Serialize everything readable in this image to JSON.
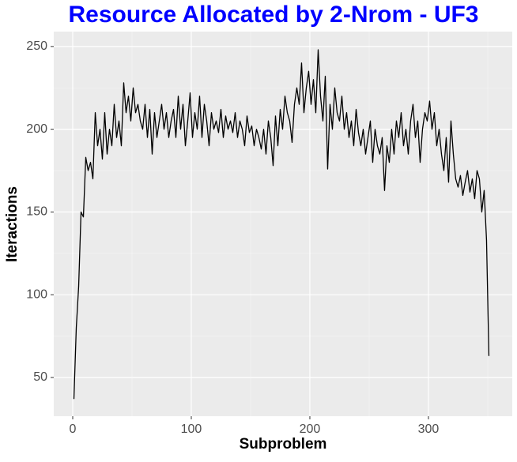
{
  "chart_data": {
    "type": "line",
    "title": "Resource Allocated by 2-Nrom - UF3",
    "x_label": "Subproblem",
    "y_label": "Iteractions",
    "xlim": [
      -16,
      370.7
    ],
    "ylim": [
      26.6,
      259
    ],
    "xticks": [
      0,
      100,
      200,
      300
    ],
    "yticks": [
      50,
      100,
      150,
      200,
      250
    ],
    "grid": true,
    "series": [
      {
        "color": "#000000",
        "x": [
          1,
          3,
          5,
          7,
          9,
          11,
          13,
          15,
          17,
          19,
          21,
          23,
          25,
          27,
          29,
          31,
          33,
          35,
          37,
          39,
          41,
          43,
          45,
          47,
          49,
          51,
          53,
          55,
          57,
          59,
          61,
          63,
          65,
          67,
          69,
          71,
          73,
          75,
          77,
          79,
          81,
          83,
          85,
          87,
          89,
          91,
          93,
          95,
          97,
          99,
          101,
          103,
          105,
          107,
          109,
          111,
          113,
          115,
          117,
          119,
          121,
          123,
          125,
          127,
          129,
          131,
          133,
          135,
          137,
          139,
          141,
          143,
          145,
          147,
          149,
          151,
          153,
          155,
          157,
          159,
          161,
          163,
          165,
          167,
          169,
          171,
          173,
          175,
          177,
          179,
          181,
          183,
          185,
          187,
          189,
          191,
          193,
          195,
          197,
          199,
          201,
          203,
          205,
          207,
          209,
          211,
          213,
          215,
          217,
          219,
          221,
          223,
          225,
          227,
          229,
          231,
          233,
          235,
          237,
          239,
          241,
          243,
          245,
          247,
          249,
          251,
          253,
          255,
          257,
          259,
          261,
          263,
          265,
          267,
          269,
          271,
          273,
          275,
          277,
          279,
          281,
          283,
          285,
          287,
          289,
          291,
          293,
          295,
          297,
          299,
          301,
          303,
          305,
          307,
          309,
          311,
          313,
          315,
          317,
          319,
          321,
          323,
          325,
          327,
          329,
          331,
          333,
          335,
          337,
          339,
          341,
          343,
          345,
          347,
          349,
          351
        ],
        "values": [
          37,
          80,
          105,
          150,
          147,
          183,
          175,
          180,
          170,
          210,
          190,
          200,
          182,
          210,
          185,
          200,
          190,
          215,
          195,
          205,
          190,
          228,
          210,
          220,
          205,
          225,
          210,
          215,
          205,
          200,
          215,
          195,
          212,
          185,
          210,
          195,
          205,
          215,
          200,
          210,
          195,
          205,
          212,
          195,
          220,
          200,
          215,
          190,
          205,
          222,
          195,
          210,
          200,
          220,
          195,
          215,
          205,
          190,
          210,
          200,
          205,
          198,
          212,
          195,
          208,
          200,
          205,
          198,
          210,
          195,
          205,
          200,
          190,
          208,
          198,
          202,
          190,
          200,
          195,
          188,
          200,
          185,
          205,
          195,
          178,
          208,
          190,
          212,
          200,
          220,
          210,
          205,
          192,
          215,
          225,
          215,
          240,
          210,
          225,
          235,
          215,
          230,
          210,
          248,
          220,
          205,
          232,
          176,
          215,
          200,
          225,
          210,
          205,
          220,
          200,
          210,
          195,
          205,
          190,
          212,
          198,
          190,
          200,
          185,
          195,
          205,
          180,
          200,
          190,
          185,
          195,
          163,
          190,
          180,
          200,
          185,
          205,
          195,
          210,
          190,
          200,
          185,
          205,
          215,
          195,
          205,
          180,
          200,
          210,
          205,
          217,
          200,
          210,
          190,
          200,
          185,
          175,
          195,
          168,
          205,
          185,
          170,
          165,
          172,
          160,
          168,
          175,
          162,
          170,
          158,
          175,
          170,
          150,
          163,
          133,
          63
        ]
      }
    ]
  }
}
